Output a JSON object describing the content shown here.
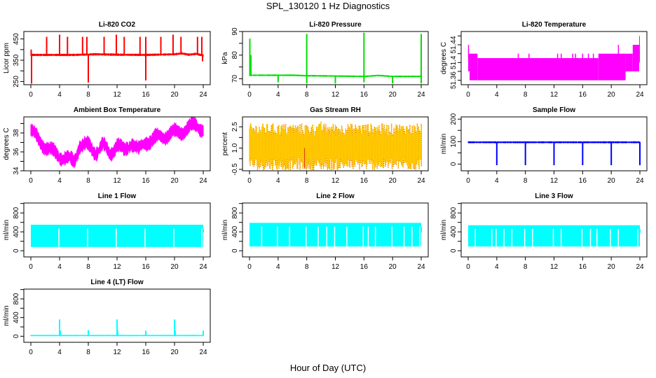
{
  "title": "SPL_130120  1 Hz Diagnostics",
  "xlabel": "Hour of Day (UTC)",
  "chart_data": [
    {
      "type": "line",
      "title": "Li-820 CO2",
      "ylabel": "Licor ppm",
      "color": "#ff0000",
      "xlim": [
        0,
        24
      ],
      "xticks": [
        0,
        4,
        8,
        12,
        16,
        20,
        24
      ],
      "ylim": [
        235,
        485
      ],
      "yticks": [
        250,
        300,
        350,
        400,
        450
      ],
      "yticklabels": [
        "250",
        "",
        "350",
        "",
        "450"
      ],
      "baseline": [
        [
          0,
          375
        ],
        [
          6,
          375
        ],
        [
          9,
          378
        ],
        [
          12,
          376
        ],
        [
          16,
          375
        ],
        [
          20,
          378
        ],
        [
          21,
          382
        ],
        [
          22,
          376
        ],
        [
          23,
          380
        ],
        [
          24,
          372
        ]
      ],
      "band": 6,
      "spikes": [
        [
          0.1,
          240
        ],
        [
          0.05,
          400
        ],
        [
          2.2,
          460
        ],
        [
          4,
          470
        ],
        [
          5.1,
          460
        ],
        [
          7.2,
          460
        ],
        [
          7.8,
          460
        ],
        [
          8,
          245
        ],
        [
          10.2,
          460
        ],
        [
          11.9,
          470
        ],
        [
          13,
          460
        ],
        [
          15.2,
          460
        ],
        [
          16,
          255
        ],
        [
          16,
          460
        ],
        [
          18.1,
          460
        ],
        [
          19.8,
          470
        ],
        [
          20.9,
          460
        ],
        [
          23.2,
          460
        ],
        [
          23.8,
          460
        ],
        [
          23.9,
          345
        ]
      ]
    },
    {
      "type": "line",
      "title": "Li-820 Pressure",
      "ylabel": "kPa",
      "color": "#00dd00",
      "xlim": [
        0,
        24
      ],
      "xticks": [
        0,
        4,
        8,
        12,
        16,
        20,
        24
      ],
      "ylim": [
        67.5,
        90
      ],
      "yticks": [
        70,
        75,
        80,
        85,
        90
      ],
      "yticklabels": [
        "70",
        "",
        "80",
        "",
        "90"
      ],
      "baseline": [
        [
          0,
          71.5
        ],
        [
          6,
          71.5
        ],
        [
          8,
          71.3
        ],
        [
          11,
          71.2
        ],
        [
          16,
          71.0
        ],
        [
          18,
          71.4
        ],
        [
          20,
          71.0
        ],
        [
          24,
          71.0
        ]
      ],
      "band": 0.3,
      "spikes": [
        [
          0.05,
          87
        ],
        [
          0.2,
          80
        ],
        [
          4,
          68.5
        ],
        [
          8,
          89
        ],
        [
          8,
          68
        ],
        [
          12,
          68
        ],
        [
          16,
          89.5
        ],
        [
          16,
          68.5
        ],
        [
          20,
          68
        ],
        [
          24,
          89
        ],
        [
          24,
          68
        ]
      ]
    },
    {
      "type": "area",
      "title": "Li-820 Temperature",
      "ylabel": "degrees C",
      "color": "#ff00ff",
      "xlim": [
        0,
        24
      ],
      "xticks": [
        0,
        4,
        8,
        12,
        16,
        20,
        24
      ],
      "ylim": [
        51.35,
        51.47
      ],
      "yticks": [
        51.36,
        51.38,
        51.4,
        51.42,
        51.44,
        51.46
      ],
      "yticklabels": [
        "51.36",
        "",
        "51.4",
        "",
        "51.44",
        ""
      ],
      "steps": [
        [
          0,
          51.38,
          51.42
        ],
        [
          0.2,
          51.36,
          51.42
        ],
        [
          1.3,
          51.36,
          51.41
        ],
        [
          18.2,
          51.36,
          51.42
        ],
        [
          22,
          51.38,
          51.42
        ],
        [
          23,
          51.38,
          51.44
        ],
        [
          23.9,
          51.4,
          51.46
        ]
      ],
      "spikes": [
        [
          0.05,
          51.44
        ],
        [
          7,
          51.42
        ],
        [
          8.5,
          51.42
        ],
        [
          12.5,
          51.42
        ],
        [
          13,
          51.42
        ],
        [
          14.6,
          51.42
        ],
        [
          15,
          51.42
        ],
        [
          16,
          51.42
        ],
        [
          16.8,
          51.42
        ],
        [
          17.5,
          51.42
        ],
        [
          21,
          51.44
        ]
      ]
    },
    {
      "type": "line",
      "title": "Ambient Box Temperature",
      "ylabel": "degrees C",
      "color": "#ff00ff",
      "xlim": [
        0,
        24
      ],
      "xticks": [
        0,
        4,
        8,
        12,
        16,
        20,
        24
      ],
      "ylim": [
        34,
        39.7
      ],
      "yticks": [
        34,
        35,
        36,
        37,
        38,
        39
      ],
      "yticklabels": [
        "34",
        "",
        "36",
        "",
        "38",
        ""
      ],
      "baseline": [
        [
          0,
          38.3
        ],
        [
          1,
          37.3
        ],
        [
          2,
          36.6
        ],
        [
          3,
          36.0
        ],
        [
          4,
          35.6
        ],
        [
          5,
          35.3
        ],
        [
          6,
          34.9
        ],
        [
          6.8,
          36.8
        ],
        [
          8,
          36.6
        ],
        [
          9,
          36.0
        ],
        [
          10,
          36.7
        ],
        [
          11,
          35.8
        ],
        [
          12,
          36.8
        ],
        [
          13,
          36.0
        ],
        [
          14,
          37.1
        ],
        [
          15,
          36.1
        ],
        [
          16,
          37.1
        ],
        [
          17,
          37.3
        ],
        [
          18,
          37.6
        ],
        [
          19,
          37.8
        ],
        [
          20,
          38.0
        ],
        [
          21,
          38.2
        ],
        [
          22,
          38.5
        ],
        [
          23,
          38.9
        ],
        [
          24,
          38.4
        ]
      ],
      "band": 1.0,
      "oscillation": 0.35
    },
    {
      "type": "area",
      "title": "Gas Stream RH",
      "ylabel": "percent",
      "color": "#ffcc00",
      "color2": "#dd3300",
      "xlim": [
        0,
        24
      ],
      "xticks": [
        0,
        4,
        8,
        12,
        16,
        20,
        24
      ],
      "ylim": [
        -0.6,
        3.2
      ],
      "yticks": [
        -0.5,
        0.25,
        1.0,
        1.75,
        2.5
      ],
      "yticklabels": [
        "-0.5",
        "",
        "1.0",
        "",
        "2.5"
      ],
      "mean": 1.0,
      "low": -0.1,
      "high": 2.3,
      "extremes": [
        -0.45,
        2.9
      ]
    },
    {
      "type": "line",
      "title": "Sample Flow",
      "ylabel": "ml/min",
      "color": "#0000ff",
      "xlim": [
        0,
        24
      ],
      "xticks": [
        0,
        4,
        8,
        12,
        16,
        20,
        24
      ],
      "ylim": [
        -30,
        210
      ],
      "yticks": [
        0,
        50,
        100,
        150,
        200
      ],
      "yticklabels": [
        "0",
        "",
        "100",
        "",
        "200"
      ],
      "baseline": [
        [
          0,
          97
        ],
        [
          24,
          97
        ]
      ],
      "band": 4,
      "spikes": [
        [
          4,
          -5
        ],
        [
          8,
          -5
        ],
        [
          12,
          -5
        ],
        [
          16,
          -5
        ],
        [
          20,
          -5
        ],
        [
          24,
          -5
        ]
      ]
    },
    {
      "type": "area",
      "title": "Line 1 Flow",
      "ylabel": "ml/min",
      "color": "#00ffff",
      "xlim": [
        0,
        24
      ],
      "xticks": [
        0,
        4,
        8,
        12,
        16,
        20,
        24
      ],
      "ylim": [
        -130,
        1010
      ],
      "yticks": [
        0,
        200,
        400,
        600,
        800,
        1000
      ],
      "yticklabels": [
        "0",
        "",
        "400",
        "",
        "800",
        ""
      ],
      "low": 80,
      "high": 550,
      "gaps": [
        3.9,
        7.9,
        11.9,
        15.9,
        19.9,
        23.8
      ]
    },
    {
      "type": "area",
      "title": "Line 2 Flow",
      "ylabel": "ml/min",
      "color": "#00ffff",
      "xlim": [
        0,
        24
      ],
      "xticks": [
        0,
        4,
        8,
        12,
        16,
        20,
        24
      ],
      "ylim": [
        -130,
        1010
      ],
      "yticks": [
        0,
        200,
        400,
        600,
        800,
        1000
      ],
      "yticklabels": [
        "0",
        "",
        "400",
        "",
        "800",
        ""
      ],
      "low": 90,
      "high": 590,
      "gaps": [
        1.7,
        3.9,
        5.6,
        7.9,
        9.6,
        10.8,
        11.9,
        13.6,
        15.9,
        16.6,
        17.6,
        19.9,
        21.6,
        22.7,
        23.8
      ]
    },
    {
      "type": "area",
      "title": "Line 3 Flow",
      "ylabel": "ml/min",
      "color": "#00ffff",
      "xlim": [
        0,
        24
      ],
      "xticks": [
        0,
        4,
        8,
        12,
        16,
        20,
        24
      ],
      "ylim": [
        -130,
        1010
      ],
      "yticks": [
        0,
        200,
        400,
        600,
        800,
        1000
      ],
      "yticklabels": [
        "0",
        "",
        "400",
        "",
        "800",
        ""
      ],
      "low": 90,
      "high": 540,
      "gaps": [
        1.0,
        3.3,
        3.9,
        5.0,
        6.1,
        7.9,
        9.0,
        11.9,
        13.0,
        15.9,
        17.1,
        18.0,
        19.9,
        21.0,
        23.7
      ]
    },
    {
      "type": "line",
      "title": "Line 4 (LT) Flow",
      "ylabel": "ml/min",
      "color": "#00ffff",
      "xlim": [
        0,
        24
      ],
      "xticks": [
        0,
        4,
        8,
        12,
        16,
        20,
        24
      ],
      "ylim": [
        -130,
        1010
      ],
      "yticks": [
        0,
        200,
        400,
        600,
        800,
        1000
      ],
      "yticklabels": [
        "0",
        "",
        "400",
        "",
        "800",
        ""
      ],
      "baseline": [
        [
          0,
          15
        ],
        [
          24,
          15
        ]
      ],
      "band": 10,
      "spikes": [
        [
          4,
          360
        ],
        [
          4.1,
          120
        ],
        [
          8,
          130
        ],
        [
          12,
          360
        ],
        [
          12.1,
          120
        ],
        [
          16,
          120
        ],
        [
          20,
          360
        ],
        [
          20.1,
          120
        ],
        [
          24,
          120
        ]
      ]
    }
  ]
}
